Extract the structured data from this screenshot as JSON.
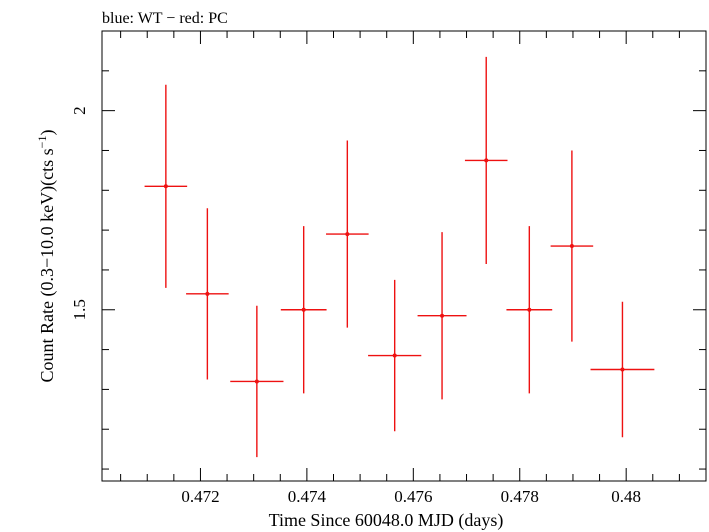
{
  "header": {
    "title": "blue: WT − red: PC"
  },
  "chart_data": {
    "type": "scatter",
    "title": "blue: WT − red: PC",
    "xlabel": "Time Since 60048.0 MJD (days)",
    "ylabel_main": "Count Rate (0.3−10.0 keV)(cts s",
    "ylabel_sup": "−1",
    "ylabel_tail": ")",
    "xlim": [
      0.47015,
      0.4815
    ],
    "ylim": [
      1.07,
      2.2
    ],
    "xticks": [
      {
        "value": 0.472,
        "label": "0.472"
      },
      {
        "value": 0.474,
        "label": "0.474"
      },
      {
        "value": 0.476,
        "label": "0.476"
      },
      {
        "value": 0.478,
        "label": "0.478"
      },
      {
        "value": 0.48,
        "label": "0.48"
      }
    ],
    "yticks": [
      {
        "value": 1.5,
        "label": "1.5"
      },
      {
        "value": 2.0,
        "label": "2"
      }
    ],
    "series": [
      {
        "color": "#ee1111",
        "points": [
          {
            "x": 0.47135,
            "xerr": 0.0004,
            "y": 1.81,
            "yerr": 0.255
          },
          {
            "x": 0.47213,
            "xerr": 0.0004,
            "y": 1.54,
            "yerr": 0.215
          },
          {
            "x": 0.47306,
            "xerr": 0.0005,
            "y": 1.32,
            "yerr": 0.19
          },
          {
            "x": 0.47394,
            "xerr": 0.00043,
            "y": 1.5,
            "yerr": 0.21
          },
          {
            "x": 0.47476,
            "xerr": 0.0004,
            "y": 1.69,
            "yerr": 0.235
          },
          {
            "x": 0.47565,
            "xerr": 0.0005,
            "y": 1.385,
            "yerr": 0.19
          },
          {
            "x": 0.47654,
            "xerr": 0.00046,
            "y": 1.485,
            "yerr": 0.21
          },
          {
            "x": 0.47737,
            "xerr": 0.0004,
            "y": 1.875,
            "yerr": 0.26
          },
          {
            "x": 0.47818,
            "xerr": 0.00043,
            "y": 1.5,
            "yerr": 0.21
          },
          {
            "x": 0.47898,
            "xerr": 0.0004,
            "y": 1.66,
            "yerr": 0.24
          },
          {
            "x": 0.47993,
            "xerr": 0.0006,
            "y": 1.35,
            "yerr": 0.17
          }
        ]
      }
    ]
  }
}
